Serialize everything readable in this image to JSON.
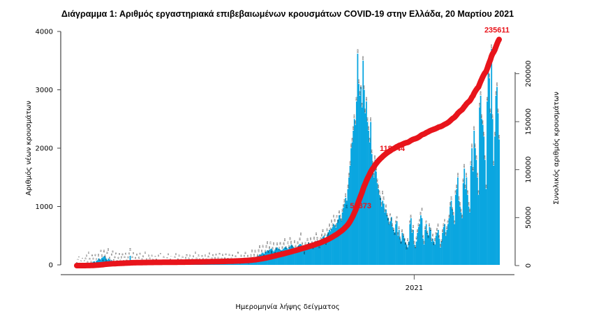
{
  "chart_data": {
    "type": "bar",
    "title": "Διάγραμμα 1: Αριθμός εργαστηριακά επιβεβαιωμένων κρουσμάτων COVID-19 στην Ελλάδα, 20 Μαρτίου 2021",
    "xlabel": "Ημερομηνία λήψης δείγματος",
    "ylabel": "Αριθμός νέων κρουσμάτων",
    "y2label": "Συνολικός αριθμός κρουσμάτων",
    "date_range": [
      "2020-02-26",
      "2021-03-20"
    ],
    "x_tick_labels": [
      {
        "date": "2021-01-01",
        "label": "2021"
      }
    ],
    "ylim": [
      0,
      4000
    ],
    "y_ticks": [
      "0",
      "1000",
      "2000",
      "3000",
      "4000"
    ],
    "y2lim": [
      0,
      244000
    ],
    "y2_ticks": [
      "0",
      "50000",
      "100000",
      "150000",
      "200000"
    ],
    "grid": false,
    "colors": {
      "bars": "#0aa6e0",
      "cumulative": "#e8141b"
    },
    "series": [
      {
        "type": "bar",
        "axis": "left",
        "values": [
          1,
          2,
          0,
          3,
          2,
          1,
          3,
          5,
          10,
          12,
          20,
          15,
          30,
          25,
          40,
          55,
          60,
          45,
          70,
          80,
          110,
          90,
          95,
          120,
          130,
          150,
          140,
          100,
          85,
          110,
          95,
          70,
          80,
          60,
          55,
          60,
          50,
          65,
          45,
          40,
          70,
          55,
          60,
          40,
          35,
          45,
          50,
          30,
          25,
          156,
          40,
          35,
          30,
          25,
          20,
          30,
          35,
          25,
          20,
          15,
          20,
          25,
          18,
          15,
          20,
          15,
          12,
          10,
          8,
          10,
          12,
          14,
          9,
          8,
          6,
          10,
          12,
          8,
          7,
          9,
          10,
          6,
          5,
          8,
          10,
          12,
          9,
          7,
          6,
          8,
          10,
          15,
          20,
          18,
          12,
          10,
          10,
          12,
          8,
          15,
          20,
          18,
          14,
          10,
          12,
          16,
          20,
          25,
          18,
          15,
          12,
          10,
          14,
          20,
          22,
          30,
          25,
          18,
          15,
          20,
          22,
          18,
          25,
          20,
          15,
          20,
          25,
          20,
          30,
          28,
          22,
          18,
          30,
          35,
          25,
          30,
          40,
          35,
          30,
          28,
          25,
          30,
          35,
          40,
          38,
          45,
          50,
          42,
          38,
          45,
          55,
          60,
          50,
          45,
          55,
          60,
          70,
          80,
          75,
          90,
          100,
          110,
          120,
          130,
          125,
          140,
          150,
          160,
          180,
          170,
          200,
          210,
          190,
          220,
          230,
          250,
          240,
          260,
          270,
          280,
          250,
          230,
          260,
          290,
          300,
          280,
          270,
          260,
          250,
          260,
          280,
          300,
          310,
          290,
          270,
          300,
          320,
          350,
          330,
          310,
          290,
          280,
          300,
          320,
          340,
          360,
          350,
          330,
          300,
          290,
          310,
          330,
          350,
          380,
          360,
          340,
          320,
          330,
          350,
          380,
          400,
          420,
          390,
          370,
          410,
          450,
          480,
          500,
          460,
          430,
          520,
          560,
          600,
          580,
          620,
          650,
          700,
          680,
          640,
          720,
          780,
          850,
          800,
          760,
          900,
          980,
          1050,
          1150,
          1100,
          1300,
          1500,
          1700,
          2000,
          2100,
          2300,
          2500,
          2400,
          2800,
          3620,
          3100,
          2900,
          3050,
          2700,
          3500,
          3000,
          2600,
          2800,
          2450,
          2300,
          2100,
          2450,
          1900,
          1700,
          1500,
          1800,
          1600,
          1400,
          1300,
          1200,
          1150,
          1000,
          1100,
          1050,
          900,
          950,
          850,
          800,
          700,
          750,
          820,
          650,
          600,
          550,
          700,
          750,
          500,
          600,
          450,
          400,
          550,
          500,
          450,
          380,
          350,
          300,
          400,
          700,
          800,
          550,
          600,
          350,
          300,
          400,
          550,
          650,
          700,
          850,
          800,
          450,
          350,
          600,
          700,
          550,
          500,
          650,
          600,
          400,
          450,
          400,
          350,
          500,
          550,
          600,
          450,
          300,
          400,
          550,
          650,
          700,
          500,
          600,
          700,
          800,
          1000,
          1100,
          950,
          850,
          700,
          1200,
          1300,
          1500,
          1100,
          1000,
          900,
          800,
          1400,
          1650,
          1300,
          1500,
          1200,
          1000,
          900,
          1700,
          2000,
          1600,
          2300,
          2000,
          1800,
          1500,
          1200,
          2700,
          2900,
          2500,
          2400,
          2200,
          1800,
          1300,
          2800,
          3400,
          3200,
          2600,
          3700,
          2500,
          1700,
          2200,
          2900,
          3050,
          2600,
          2150
        ]
      },
      {
        "type": "line",
        "axis": "right",
        "cumulative_of_bars": true
      }
    ],
    "annotations": [
      {
        "label": "58373",
        "value": 58373
      },
      {
        "label": "118044",
        "value": 118044
      },
      {
        "label": "235611",
        "value": 235611
      }
    ]
  }
}
